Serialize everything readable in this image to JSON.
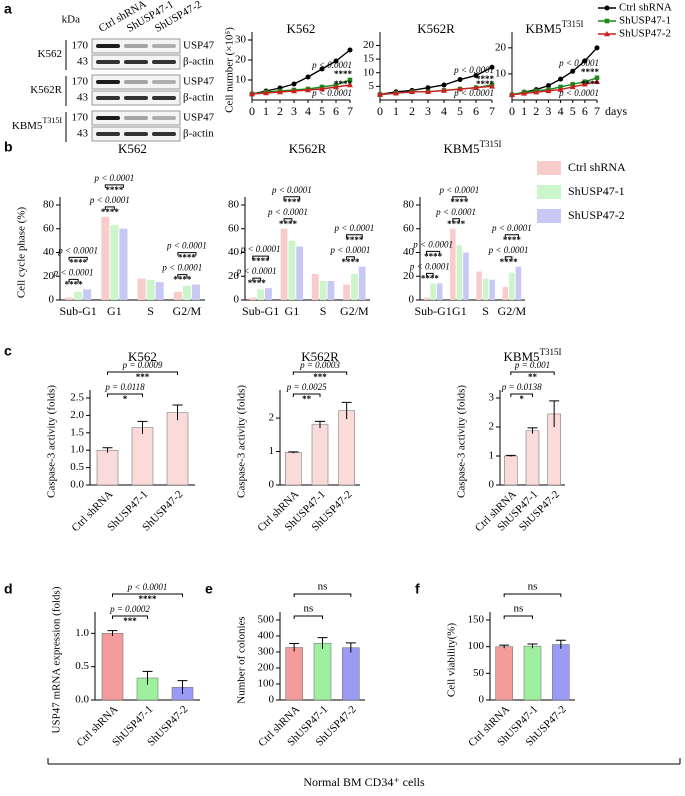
{
  "panel_labels": [
    "a",
    "b",
    "c",
    "d",
    "e",
    "f"
  ],
  "western_blot": {
    "kda_label": "kDa",
    "lanes": [
      "Ctrl shRNA",
      "ShUSP47-1",
      "ShUSP47-2"
    ],
    "blocks": [
      {
        "cell_line": "K562",
        "rows": [
          {
            "kda": "170",
            "protein": "USP47"
          },
          {
            "kda": "43",
            "protein": "β-actin"
          }
        ]
      },
      {
        "cell_line": "K562R",
        "rows": [
          {
            "kda": "170",
            "protein": "USP47"
          },
          {
            "kda": "43",
            "protein": "β-actin"
          }
        ]
      },
      {
        "cell_line": "KBM5",
        "cell_line_sup": "T315I",
        "rows": [
          {
            "kda": "170",
            "protein": "USP47"
          },
          {
            "kda": "43",
            "protein": "β-actin"
          }
        ]
      }
    ]
  },
  "chart_data": [
    {
      "type": "line",
      "title": "K562",
      "y_label": "Cell number (×10⁵)",
      "x": [
        0,
        1,
        2,
        3,
        4,
        5,
        6,
        7
      ],
      "xlim": [
        0,
        7
      ],
      "xticks": [
        0,
        1,
        2,
        3,
        4,
        5,
        6,
        7
      ],
      "ylim": [
        0,
        30
      ],
      "yticks": [
        10,
        20,
        30
      ],
      "series": [
        {
          "name": "Ctrl shRNA",
          "color": "#000000",
          "values": [
            3,
            4.5,
            6,
            8,
            11.5,
            15.5,
            19.5,
            25
          ]
        },
        {
          "name": "ShUSP47-1",
          "color": "#1a8a1a",
          "values": [
            3,
            4,
            4.5,
            5,
            5.5,
            6.5,
            7.5,
            10
          ]
        },
        {
          "name": "ShUSP47-2",
          "color": "#cc2020",
          "values": [
            3,
            3.5,
            4,
            4.5,
            5,
            5.5,
            6.5,
            7.5
          ]
        }
      ],
      "annotations": [
        {
          "p": "p < 0.0001",
          "stars": "****"
        },
        {
          "p": "p < 0.0001",
          "stars": "****"
        }
      ]
    },
    {
      "type": "line",
      "title": "K562R",
      "x": [
        0,
        1,
        2,
        3,
        4,
        5,
        6,
        7
      ],
      "xlim": [
        0,
        7
      ],
      "xticks": [
        0,
        1,
        2,
        3,
        4,
        5,
        6,
        7
      ],
      "ylim": [
        0,
        22
      ],
      "yticks": [
        5,
        10,
        15,
        20
      ],
      "series": [
        {
          "color": "#000000",
          "values": [
            2,
            3,
            3.5,
            4.5,
            5.5,
            7.5,
            9,
            12
          ]
        },
        {
          "color": "#1a8a1a",
          "values": [
            2,
            2.5,
            3,
            3,
            3.5,
            4,
            4.5,
            5.5
          ]
        },
        {
          "color": "#cc2020",
          "values": [
            2,
            2.5,
            3,
            3,
            3.5,
            4,
            4.5,
            5
          ]
        }
      ],
      "annotations": [
        {
          "p": "p < 0.0001",
          "stars": "****"
        },
        {
          "p": "p < 0.0001",
          "stars": "****"
        }
      ]
    },
    {
      "type": "line",
      "title": "KBM5",
      "title_sup": "T315I",
      "x_label": "days",
      "x": [
        0,
        1,
        2,
        3,
        4,
        5,
        6,
        7
      ],
      "xlim": [
        0,
        7
      ],
      "xticks": [
        0,
        1,
        2,
        3,
        4,
        5,
        6,
        7
      ],
      "ylim": [
        0,
        23
      ],
      "yticks": [
        10,
        20
      ],
      "series": [
        {
          "color": "#000000",
          "values": [
            2,
            3,
            4,
            5.5,
            8,
            11,
            15,
            20
          ]
        },
        {
          "color": "#1a8a1a",
          "values": [
            2,
            3,
            3.5,
            4,
            5,
            6,
            7,
            8.5
          ]
        },
        {
          "color": "#cc2020",
          "values": [
            2,
            2.5,
            3,
            3.5,
            4,
            5,
            6,
            7
          ]
        }
      ],
      "annotations": [
        {
          "p": "p < 0.0001",
          "stars": "****"
        },
        {
          "p": "p < 0.0001",
          "stars": "****"
        }
      ]
    },
    {
      "type": "grouped_bar",
      "title": "K562",
      "y_label": "Cell cycle phase (%)",
      "categories": [
        "Sub-G1",
        "G1",
        "S",
        "G2/M"
      ],
      "ylim": [
        0,
        80
      ],
      "yticks": [
        0,
        20,
        40,
        60,
        80
      ],
      "series": [
        {
          "name": "Ctrl shRNA",
          "color": "#f9cccc",
          "values": [
            2,
            70,
            18,
            7
          ]
        },
        {
          "name": "ShUSP47-1",
          "color": "#ccf5cc",
          "values": [
            7,
            63,
            17,
            12
          ]
        },
        {
          "name": "ShUSP47-2",
          "color": "#c8c8f5",
          "values": [
            9,
            60,
            15,
            13
          ]
        }
      ],
      "comparisons": [
        {
          "p": "p < 0.0001",
          "stars": "****"
        },
        {
          "p": "p < 0.0001",
          "stars": "****"
        },
        {
          "p": "p < 0.0001",
          "stars": "****"
        },
        {
          "p": "p < 0.0001",
          "stars": "****"
        },
        {
          "p": "p < 0.0001",
          "stars": "****"
        },
        {
          "p": "p < 0.0001",
          "stars": "****"
        }
      ]
    },
    {
      "type": "grouped_bar",
      "title": "K562R",
      "categories": [
        "Sub-G1",
        "G1",
        "S",
        "G2/M"
      ],
      "ylim": [
        0,
        80
      ],
      "yticks": [
        0,
        20,
        40,
        60,
        80
      ],
      "series": [
        {
          "color": "#f9cccc",
          "values": [
            2,
            60,
            22,
            13
          ]
        },
        {
          "color": "#ccf5cc",
          "values": [
            9,
            50,
            16,
            22
          ]
        },
        {
          "color": "#c8c8f5",
          "values": [
            10,
            45,
            16,
            28
          ]
        }
      ],
      "comparisons": [
        {
          "p": "p < 0.0001",
          "stars": "****"
        },
        {
          "p": "p < 0.0001",
          "stars": "****"
        },
        {
          "p": "p < 0.0001",
          "stars": "****"
        },
        {
          "p": "p < 0.0001",
          "stars": "****"
        },
        {
          "p": "p < 0.0001",
          "stars": "****"
        },
        {
          "p": "p < 0.0001",
          "stars": "****"
        }
      ]
    },
    {
      "type": "grouped_bar",
      "title": "KBM5",
      "title_sup": "T315I",
      "categories": [
        "Sub-G1",
        "G1",
        "S",
        "G2/M"
      ],
      "ylim": [
        0,
        80
      ],
      "yticks": [
        0,
        20,
        40,
        60,
        80
      ],
      "series": [
        {
          "color": "#f9cccc",
          "values": [
            2,
            60,
            24,
            11
          ]
        },
        {
          "color": "#ccf5cc",
          "values": [
            14,
            46,
            18,
            23
          ]
        },
        {
          "color": "#c8c8f5",
          "values": [
            14,
            40,
            17,
            28
          ]
        }
      ],
      "comparisons": [
        {
          "p": "p < 0.0001",
          "stars": "****"
        },
        {
          "p": "p < 0.0001",
          "stars": "****"
        },
        {
          "p": "p < 0.0001",
          "stars": "****"
        },
        {
          "p": "p < 0.0001",
          "stars": "****"
        },
        {
          "p": "p < 0.0001",
          "stars": "****"
        },
        {
          "p": "p < 0.0001",
          "stars": "****"
        }
      ]
    },
    {
      "type": "bar",
      "title": "K562",
      "y_label": "Caspase-3 activity (folds)",
      "categories": [
        "Ctrl shRNA",
        "ShUSP47-1",
        "ShUSP47-2"
      ],
      "values": [
        1.0,
        1.65,
        2.08
      ],
      "errors": [
        0.07,
        0.18,
        0.22
      ],
      "color": "#fbdada",
      "ylim": [
        0,
        2.5
      ],
      "yticks": [
        {
          "value": 0,
          "label": "0.0"
        },
        0.5,
        {
          "value": 1,
          "label": "1.0"
        },
        1.5,
        {
          "value": 2,
          "label": "2.0"
        },
        2.5
      ],
      "comparisons": [
        {
          "p": "p = 0.0118",
          "stars": "*"
        },
        {
          "p": "p = 0.0009",
          "stars": "***"
        }
      ]
    },
    {
      "type": "bar",
      "title": "K562R",
      "y_label": "Caspase-3 activity (folds)",
      "categories": [
        "Ctrl shRNA",
        "ShUSP47-1",
        "ShUSP47-2"
      ],
      "values": [
        0.97,
        1.8,
        2.22
      ],
      "errors": [
        0.02,
        0.1,
        0.25
      ],
      "color": "#fbdada",
      "ylim": [
        0,
        2.6
      ],
      "yticks": [
        0,
        1,
        2
      ],
      "comparisons": [
        {
          "p": "p = 0.0025",
          "stars": "**"
        },
        {
          "p": "p = 0.0003",
          "stars": "***"
        }
      ]
    },
    {
      "type": "bar",
      "title": "KBM5",
      "title_sup": "T315I",
      "y_label": "Caspase-3 activity (folds)",
      "categories": [
        "Ctrl shRNA",
        "ShUSP47-1",
        "ShUSP47-2"
      ],
      "values": [
        1.0,
        1.87,
        2.45
      ],
      "errors": [
        0.02,
        0.1,
        0.45
      ],
      "color": "#fbdada",
      "ylim": [
        0,
        3
      ],
      "yticks": [
        0,
        1,
        2,
        3
      ],
      "comparisons": [
        {
          "p": "p = 0.0138",
          "stars": "*"
        },
        {
          "p": "p = 0.001",
          "stars": "**"
        }
      ]
    },
    {
      "type": "bar",
      "y_label": "USP47 mRNA expression (folds)",
      "categories": [
        "Ctrl shRNA",
        "ShUSP47-1",
        "ShUSP47-2"
      ],
      "values": [
        1.0,
        0.33,
        0.19
      ],
      "errors": [
        0.04,
        0.1,
        0.1
      ],
      "colors": [
        "#f49b9b",
        "#9ef09e",
        "#9b9bf5"
      ],
      "ylim": [
        0,
        1.2
      ],
      "yticks": [
        {
          "value": 0,
          "label": "0.0"
        },
        0.5,
        {
          "value": 1,
          "label": "1.0"
        }
      ],
      "comparisons": [
        {
          "p": "p = 0.0002",
          "stars": "***"
        },
        {
          "p": "p < 0.0001",
          "stars": "****"
        }
      ]
    },
    {
      "type": "bar",
      "y_label": "Number of colonies",
      "categories": [
        "Ctrl shRNA",
        "ShUSP47-1",
        "ShUSP47-2"
      ],
      "values": [
        328,
        355,
        327
      ],
      "errors": [
        25,
        35,
        30
      ],
      "colors": [
        "#f49b9b",
        "#9ef09e",
        "#9b9bf5"
      ],
      "ylim": [
        0,
        500
      ],
      "yticks": [
        0,
        100,
        200,
        300,
        400,
        500
      ],
      "comparisons": [
        {
          "stars": "ns"
        },
        {
          "stars": "ns"
        }
      ]
    },
    {
      "type": "bar",
      "y_label": "Cell viability(%)",
      "categories": [
        "Ctrl shRNA",
        "ShUSP47-1",
        "ShUSP47-2"
      ],
      "values": [
        100,
        101,
        104
      ],
      "errors": [
        3,
        4,
        8
      ],
      "colors": [
        "#f49b9b",
        "#9ef09e",
        "#9b9bf5"
      ],
      "ylim": [
        0,
        150
      ],
      "yticks": [
        0,
        50,
        100,
        150
      ],
      "comparisons": [
        {
          "stars": "ns"
        },
        {
          "stars": "ns"
        }
      ]
    }
  ],
  "footer": "Normal BM CD34⁺ cells"
}
